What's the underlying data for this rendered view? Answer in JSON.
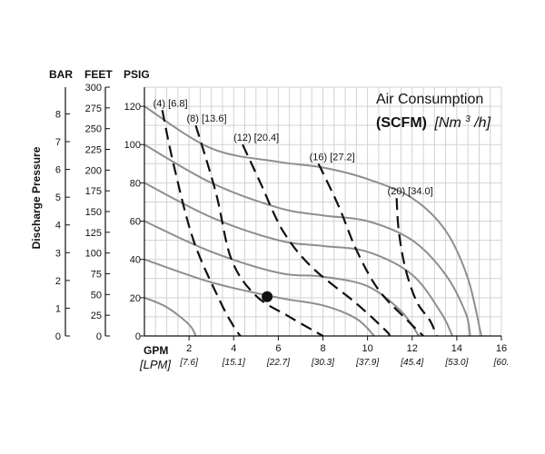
{
  "chart_data": {
    "type": "line",
    "title": "Air Consumption",
    "legend": {
      "line1": "Air Consumption",
      "units_bold": "(SCFM)",
      "units_italic": "[Nm",
      "units_sup": "3",
      "units_tail": "/h]"
    },
    "ylabel": "Discharge Pressure",
    "xlabel": {
      "primary": "GPM",
      "secondary": "[LPM]"
    },
    "y_unit_headers": {
      "bar": "BAR",
      "feet": "FEET",
      "psig": "PSIG"
    },
    "xlim": [
      0,
      16
    ],
    "ylim": [
      0,
      120
    ],
    "x_ticks": [
      {
        "gpm": 2,
        "label": "2",
        "lpm": "[7.6]"
      },
      {
        "gpm": 4,
        "label": "4",
        "lpm": "[15.1]"
      },
      {
        "gpm": 6,
        "label": "6",
        "lpm": "[22.7]"
      },
      {
        "gpm": 8,
        "label": "8",
        "lpm": "[30.3]"
      },
      {
        "gpm": 10,
        "label": "10",
        "lpm": "[37.9]"
      },
      {
        "gpm": 12,
        "label": "12",
        "lpm": "[45.4]"
      },
      {
        "gpm": 14,
        "label": "14",
        "lpm": "[53.0]"
      },
      {
        "gpm": 16,
        "label": "16",
        "lpm": "[60."
      }
    ],
    "psig_ticks": [
      "0",
      "20",
      "40",
      "60",
      "80",
      "100",
      "120"
    ],
    "feet_ticks": [
      "0",
      "25",
      "50",
      "75",
      "100",
      "125",
      "150",
      "175",
      "200",
      "225",
      "250",
      "275",
      "300"
    ],
    "bar_ticks": [
      "0",
      "1",
      "2",
      "3",
      "4",
      "5",
      "6",
      "7",
      "8"
    ],
    "pressure_curves": [
      {
        "name": "pressure-curve-1",
        "points": [
          [
            0,
            20
          ],
          [
            1,
            15
          ],
          [
            2,
            6
          ],
          [
            2.3,
            0
          ]
        ]
      },
      {
        "name": "pressure-curve-2",
        "points": [
          [
            0,
            40
          ],
          [
            3,
            28
          ],
          [
            6,
            20
          ],
          [
            8,
            16
          ],
          [
            9.5,
            9
          ],
          [
            10.3,
            0
          ]
        ]
      },
      {
        "name": "pressure-curve-3",
        "points": [
          [
            0,
            60
          ],
          [
            3,
            44
          ],
          [
            6,
            33
          ],
          [
            8,
            31
          ],
          [
            10,
            26
          ],
          [
            11.5,
            13
          ],
          [
            12.3,
            0
          ]
        ]
      },
      {
        "name": "pressure-curve-4",
        "points": [
          [
            0,
            80
          ],
          [
            3,
            62
          ],
          [
            6,
            50
          ],
          [
            8,
            47
          ],
          [
            10,
            44
          ],
          [
            12,
            32
          ],
          [
            13.3,
            12
          ],
          [
            13.8,
            0
          ]
        ]
      },
      {
        "name": "pressure-curve-5",
        "points": [
          [
            0,
            100
          ],
          [
            3,
            80
          ],
          [
            6,
            67
          ],
          [
            8,
            63
          ],
          [
            10,
            60
          ],
          [
            12,
            50
          ],
          [
            13.5,
            32
          ],
          [
            14.4,
            12
          ],
          [
            14.6,
            0
          ]
        ]
      },
      {
        "name": "pressure-curve-6",
        "points": [
          [
            0,
            120
          ],
          [
            3,
            98
          ],
          [
            6,
            91
          ],
          [
            8,
            88
          ],
          [
            10,
            82
          ],
          [
            12,
            72
          ],
          [
            13.5,
            55
          ],
          [
            14.5,
            30
          ],
          [
            15.1,
            0
          ]
        ]
      }
    ],
    "air_curves": [
      {
        "label": "(4) [6.8]",
        "points": [
          [
            0.8,
            118
          ],
          [
            1.3,
            90
          ],
          [
            2.2,
            50
          ],
          [
            3.4,
            18
          ],
          [
            4,
            5
          ],
          [
            4.3,
            0
          ]
        ]
      },
      {
        "label": "(8) [13.6]",
        "points": [
          [
            2.3,
            110
          ],
          [
            3.2,
            75
          ],
          [
            3.9,
            40
          ],
          [
            5,
            21
          ],
          [
            6.5,
            10
          ],
          [
            8,
            0
          ]
        ]
      },
      {
        "label": "(12) [20.4]",
        "points": [
          [
            4.4,
            100
          ],
          [
            5.2,
            80
          ],
          [
            6.2,
            55
          ],
          [
            7.5,
            36
          ],
          [
            9.5,
            17
          ],
          [
            10.8,
            3
          ],
          [
            11,
            0
          ]
        ]
      },
      {
        "label": "(16) [27.2]",
        "points": [
          [
            7.8,
            90
          ],
          [
            8.7,
            68
          ],
          [
            9.5,
            45
          ],
          [
            10.5,
            24
          ],
          [
            11.8,
            8
          ],
          [
            12.5,
            0
          ]
        ]
      },
      {
        "label": "(20) [34.0]",
        "points": [
          [
            11.3,
            72
          ],
          [
            11.4,
            55
          ],
          [
            11.7,
            35
          ],
          [
            12.2,
            18
          ],
          [
            12.8,
            8
          ],
          [
            13.1,
            0
          ]
        ]
      }
    ],
    "operating_point": {
      "gpm": 5.5,
      "psig": 20.5
    }
  }
}
